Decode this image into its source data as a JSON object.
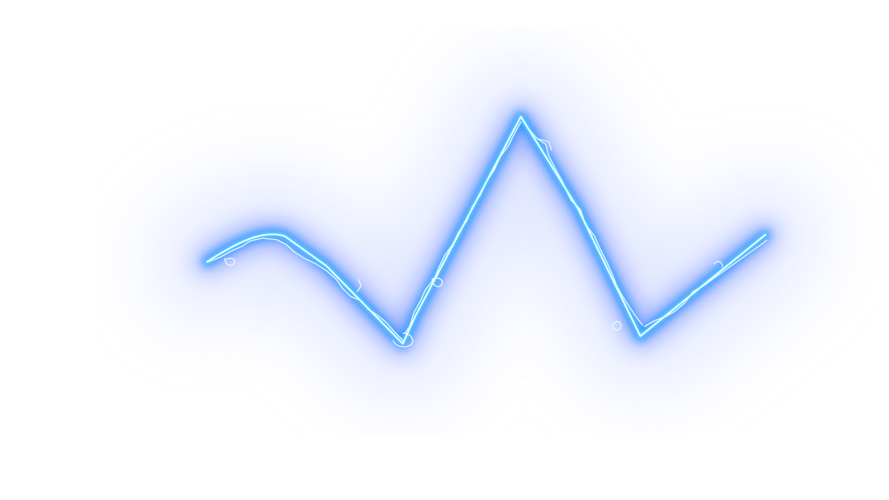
{
  "image": {
    "subject": "glowing-lightning-wave",
    "colors": {
      "background": "#ffffff",
      "haze": "#c9d3ff",
      "glow": "#2a5cff",
      "glow_inner": "#1e90ff",
      "core": "#5fd8ff",
      "highlight": "#ffffff",
      "filament": "#e8fbff"
    }
  }
}
